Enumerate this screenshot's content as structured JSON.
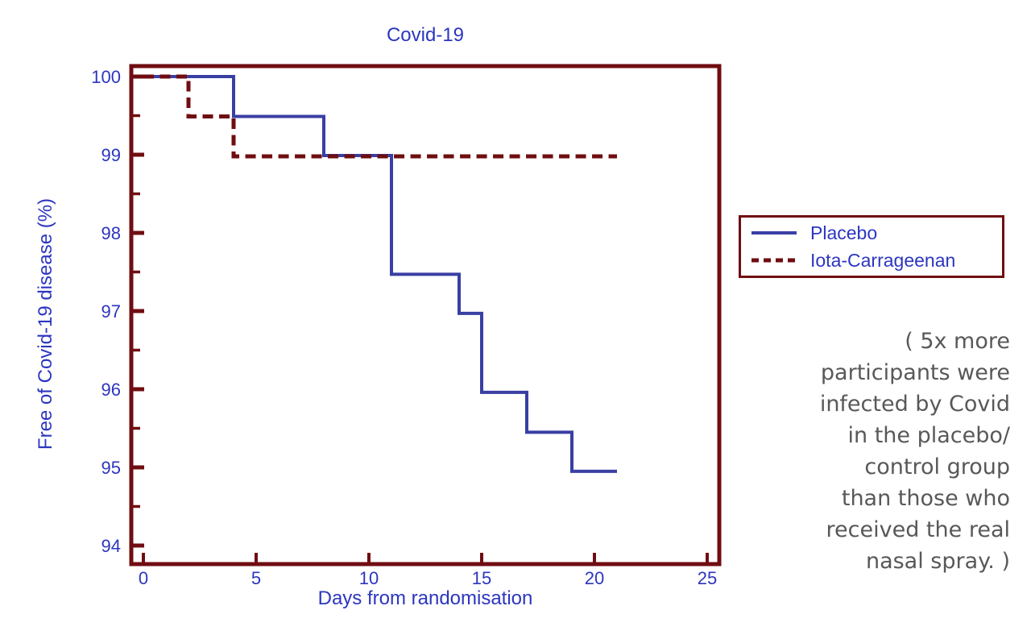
{
  "colors": {
    "line_blue": "#3a3fa3",
    "text_blue": "#2c36bf",
    "maroon": "#700d12",
    "annotation_gray": "#58585a",
    "background": "#ffffff"
  },
  "chart_data": {
    "type": "line",
    "subtype": "kaplan-meier-step",
    "title": "Covid-19",
    "xlabel": "Days from randomisation",
    "ylabel": "Free of Covid-19 disease (%)",
    "xlim": [
      0,
      25
    ],
    "ylim": [
      94,
      100
    ],
    "x_ticks": [
      0,
      5,
      10,
      15,
      20,
      25
    ],
    "y_ticks": [
      94,
      95,
      96,
      97,
      98,
      99,
      100
    ],
    "y_minor_tick_step": 0.5,
    "grid": false,
    "legend_position": "outside-right",
    "series": [
      {
        "name": "Placebo",
        "style": "solid",
        "color": "#3a3fa3",
        "x": [
          0,
          4,
          8,
          11,
          14,
          15,
          17,
          19,
          21
        ],
        "y": [
          100,
          99.49,
          98.99,
          97.47,
          96.97,
          95.96,
          95.45,
          94.95,
          94.95
        ]
      },
      {
        "name": "Iota-Carrageenan",
        "style": "dashed",
        "color": "#700d12",
        "x": [
          0,
          2,
          4,
          21
        ],
        "y": [
          100,
          99.49,
          98.98,
          98.98
        ]
      }
    ]
  },
  "legend": {
    "items": [
      {
        "label": "Placebo",
        "line_style": "solid",
        "color": "#3a3fa3"
      },
      {
        "label": "Iota-Carrageenan",
        "line_style": "dashed",
        "color": "#700d12"
      }
    ]
  },
  "annotation": {
    "text": "( 5x more\nparticipants were\ninfected by Covid\nin the placebo/\ncontrol group\nthan those who\nreceived the real\nnasal spray. )"
  }
}
